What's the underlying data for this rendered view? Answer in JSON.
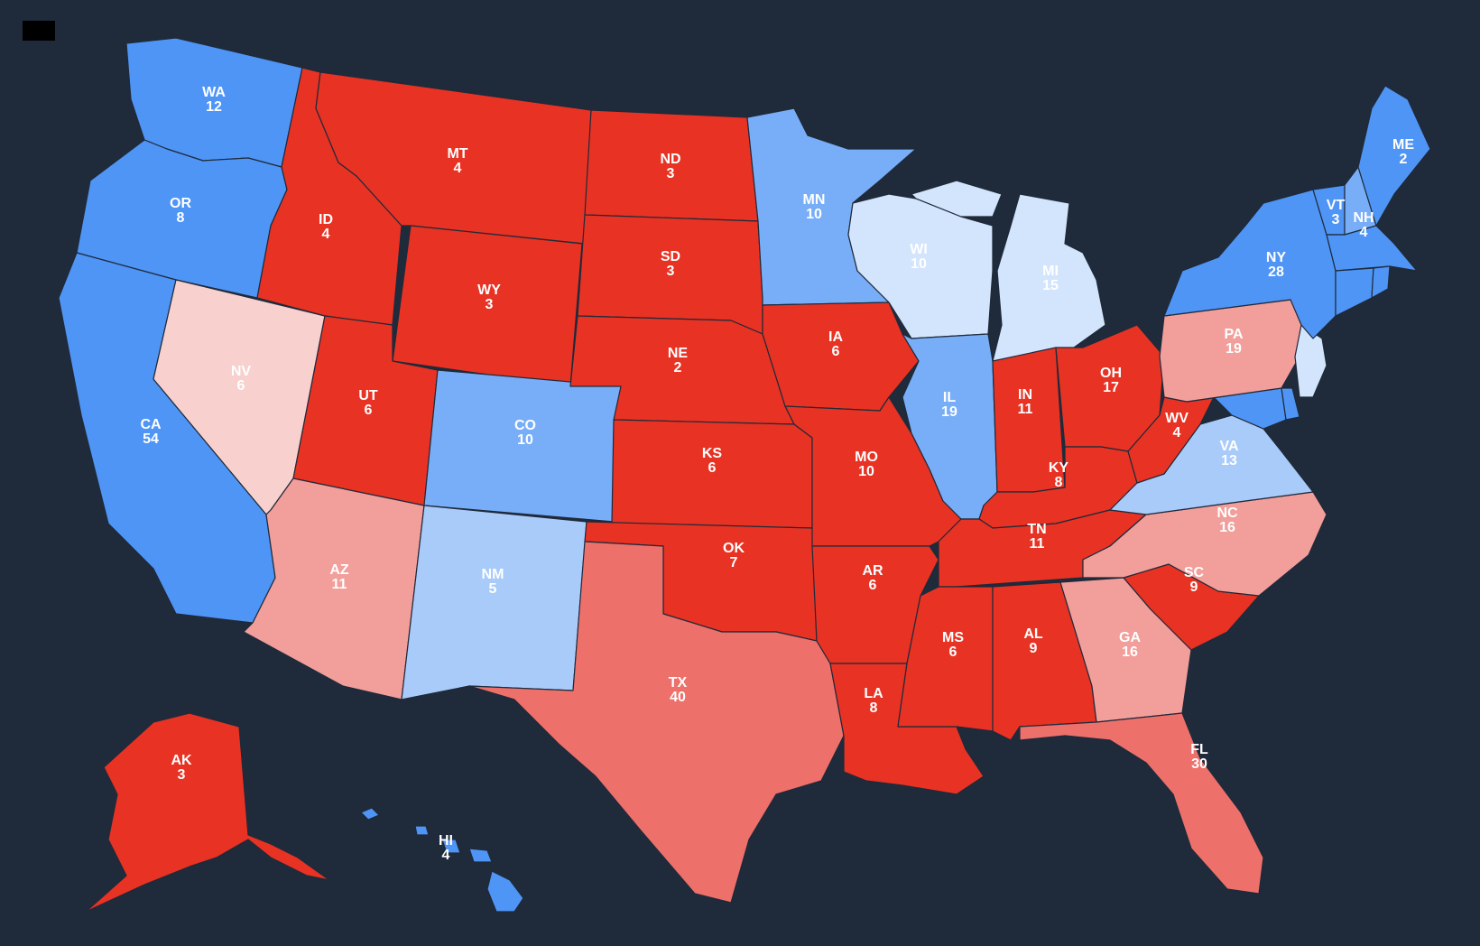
{
  "colors": {
    "background": "#1f2a3a",
    "solid_red": "#e83223",
    "likely_red": "#ee706a",
    "lean_red": "#f29e9a",
    "tilt_red": "#f8d0cd",
    "solid_blue": "#4f95f5",
    "likely_blue": "#78aef7",
    "lean_blue": "#a9cbfa",
    "tilt_blue": "#d3e5fc"
  },
  "states": [
    {
      "abbr": "WA",
      "votes": "12",
      "rating": "solid_blue"
    },
    {
      "abbr": "OR",
      "votes": "8",
      "rating": "solid_blue"
    },
    {
      "abbr": "CA",
      "votes": "54",
      "rating": "solid_blue"
    },
    {
      "abbr": "NV",
      "votes": "6",
      "rating": "tilt_red"
    },
    {
      "abbr": "ID",
      "votes": "4",
      "rating": "solid_red"
    },
    {
      "abbr": "MT",
      "votes": "4",
      "rating": "solid_red"
    },
    {
      "abbr": "WY",
      "votes": "3",
      "rating": "solid_red"
    },
    {
      "abbr": "UT",
      "votes": "6",
      "rating": "solid_red"
    },
    {
      "abbr": "AZ",
      "votes": "11",
      "rating": "lean_red"
    },
    {
      "abbr": "CO",
      "votes": "10",
      "rating": "likely_blue"
    },
    {
      "abbr": "NM",
      "votes": "5",
      "rating": "lean_blue"
    },
    {
      "abbr": "ND",
      "votes": "3",
      "rating": "solid_red"
    },
    {
      "abbr": "SD",
      "votes": "3",
      "rating": "solid_red"
    },
    {
      "abbr": "NE",
      "votes": "2",
      "rating": "solid_red"
    },
    {
      "abbr": "KS",
      "votes": "6",
      "rating": "solid_red"
    },
    {
      "abbr": "OK",
      "votes": "7",
      "rating": "solid_red"
    },
    {
      "abbr": "TX",
      "votes": "40",
      "rating": "likely_red"
    },
    {
      "abbr": "MN",
      "votes": "10",
      "rating": "likely_blue"
    },
    {
      "abbr": "IA",
      "votes": "6",
      "rating": "solid_red"
    },
    {
      "abbr": "MO",
      "votes": "10",
      "rating": "solid_red"
    },
    {
      "abbr": "AR",
      "votes": "6",
      "rating": "solid_red"
    },
    {
      "abbr": "LA",
      "votes": "8",
      "rating": "solid_red"
    },
    {
      "abbr": "WI",
      "votes": "10",
      "rating": "tilt_blue"
    },
    {
      "abbr": "IL",
      "votes": "19",
      "rating": "likely_blue"
    },
    {
      "abbr": "MI",
      "votes": "15",
      "rating": "tilt_blue"
    },
    {
      "abbr": "IN",
      "votes": "11",
      "rating": "solid_red"
    },
    {
      "abbr": "OH",
      "votes": "17",
      "rating": "solid_red"
    },
    {
      "abbr": "KY",
      "votes": "8",
      "rating": "solid_red"
    },
    {
      "abbr": "TN",
      "votes": "11",
      "rating": "solid_red"
    },
    {
      "abbr": "MS",
      "votes": "6",
      "rating": "solid_red"
    },
    {
      "abbr": "AL",
      "votes": "9",
      "rating": "solid_red"
    },
    {
      "abbr": "GA",
      "votes": "16",
      "rating": "lean_red"
    },
    {
      "abbr": "FL",
      "votes": "30",
      "rating": "likely_red"
    },
    {
      "abbr": "SC",
      "votes": "9",
      "rating": "solid_red"
    },
    {
      "abbr": "NC",
      "votes": "16",
      "rating": "lean_red"
    },
    {
      "abbr": "VA",
      "votes": "13",
      "rating": "lean_blue"
    },
    {
      "abbr": "WV",
      "votes": "4",
      "rating": "solid_red"
    },
    {
      "abbr": "PA",
      "votes": "19",
      "rating": "lean_red"
    },
    {
      "abbr": "NY",
      "votes": "28",
      "rating": "solid_blue"
    },
    {
      "abbr": "VT",
      "votes": "3",
      "rating": "solid_blue"
    },
    {
      "abbr": "NH",
      "votes": "4",
      "rating": "likely_blue"
    },
    {
      "abbr": "ME",
      "votes": "2",
      "rating": "solid_blue"
    },
    {
      "abbr": "AK",
      "votes": "3",
      "rating": "solid_red"
    },
    {
      "abbr": "HI",
      "votes": "4",
      "rating": "solid_blue"
    },
    {
      "abbr": "NJ",
      "votes": "",
      "rating": "tilt_blue"
    },
    {
      "abbr": "MD",
      "votes": "",
      "rating": "solid_blue"
    },
    {
      "abbr": "DE",
      "votes": "",
      "rating": "solid_blue"
    },
    {
      "abbr": "CT",
      "votes": "",
      "rating": "solid_blue"
    },
    {
      "abbr": "RI",
      "votes": "",
      "rating": "solid_blue"
    },
    {
      "abbr": "MA",
      "votes": "",
      "rating": "solid_blue"
    }
  ]
}
